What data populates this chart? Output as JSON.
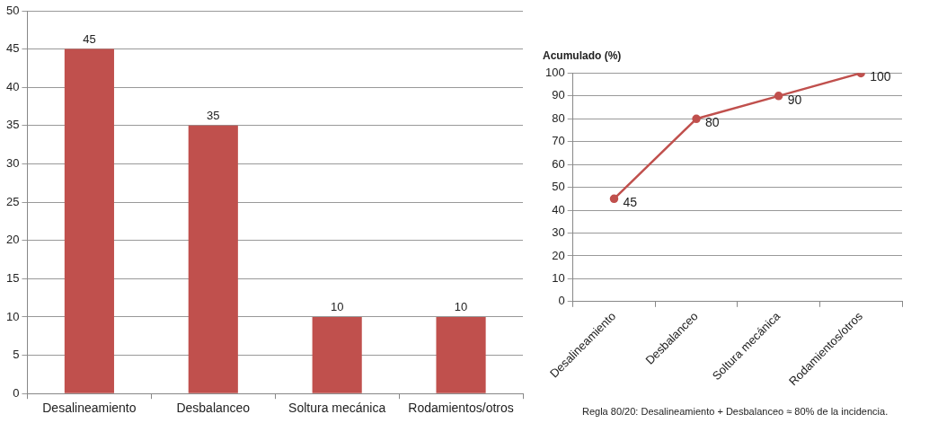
{
  "chart_data": [
    {
      "type": "bar",
      "categories": [
        "Desalineamiento",
        "Desbalanceo",
        "Soltura mecánica",
        "Rodamientos/otros"
      ],
      "values": [
        45,
        35,
        10,
        10
      ],
      "color": "#c0504d",
      "ylim": [
        0,
        50
      ],
      "yticks": [
        0,
        5,
        10,
        15,
        20,
        25,
        30,
        35,
        40,
        45,
        50
      ],
      "grid": "y",
      "data_labels": true
    },
    {
      "type": "line",
      "title": "Acumulado (%)",
      "categories": [
        "Desalineamiento",
        "Desbalanceo",
        "Soltura mecánica",
        "Rodamientos/otros"
      ],
      "values": [
        45,
        80,
        90,
        100
      ],
      "color": "#c0504d",
      "ylim": [
        0,
        100
      ],
      "yticks": [
        0,
        10,
        20,
        30,
        40,
        50,
        60,
        70,
        80,
        90,
        100
      ],
      "grid": "y",
      "marker": "circle",
      "data_labels": true,
      "annotations": [
        "Regla 80/20: Desalineamiento + Desbalanceo ≈ 80% de la incidencia."
      ]
    }
  ]
}
